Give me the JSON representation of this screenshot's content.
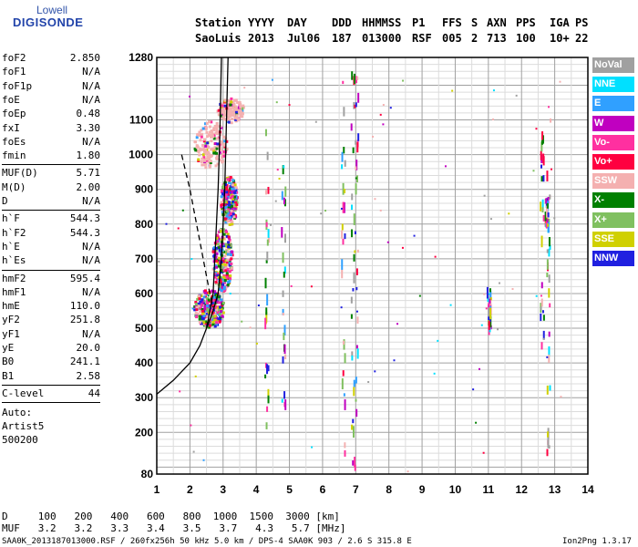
{
  "logo": {
    "top": "Lowell",
    "main": "DIGISONDE"
  },
  "header": {
    "row1": [
      "Station",
      "YYYY",
      "DAY",
      "DDD",
      "HHMMSS",
      "P1",
      "FFS",
      "S",
      "AXN",
      "PPS",
      "IGA",
      "PS"
    ],
    "row2": [
      "SaoLuis",
      "2013",
      "Jul06",
      "187",
      "013000",
      "RSF",
      "005",
      "2",
      "713",
      "100",
      "10+",
      "22"
    ]
  },
  "params": [
    {
      "k": "foF2",
      "v": "2.850"
    },
    {
      "k": "foF1",
      "v": "N/A"
    },
    {
      "k": "foF1p",
      "v": "N/A"
    },
    {
      "k": "foE",
      "v": "N/A"
    },
    {
      "k": "foEp",
      "v": "0.48"
    },
    {
      "k": "fxI",
      "v": "3.30"
    },
    {
      "k": "foEs",
      "v": "N/A"
    },
    {
      "k": "fmin",
      "v": "1.80"
    },
    {
      "k": "MUF(D)",
      "v": "5.71"
    },
    {
      "k": "M(D)",
      "v": "2.00"
    },
    {
      "k": "D",
      "v": "N/A"
    },
    {
      "k": "h`F",
      "v": "544.3"
    },
    {
      "k": "h`F2",
      "v": "544.3"
    },
    {
      "k": "h`E",
      "v": "N/A"
    },
    {
      "k": "h`Es",
      "v": "N/A"
    },
    {
      "k": "hmF2",
      "v": "595.4"
    },
    {
      "k": "hmF1",
      "v": "N/A"
    },
    {
      "k": "hmE",
      "v": "110.0"
    },
    {
      "k": "yF2",
      "v": "251.8"
    },
    {
      "k": "yF1",
      "v": "N/A"
    },
    {
      "k": "yE",
      "v": "20.0"
    },
    {
      "k": "B0",
      "v": "241.1"
    },
    {
      "k": "B1",
      "v": "2.58"
    },
    {
      "k": "C-level",
      "v": "44"
    }
  ],
  "auto_note": [
    "Auto:",
    "Artist5",
    "500200"
  ],
  "legend": [
    {
      "label": "NoVal",
      "color": "#a0a0a0"
    },
    {
      "label": "NNE",
      "color": "#00e0ff"
    },
    {
      "label": "E",
      "color": "#30a0ff"
    },
    {
      "label": "W",
      "color": "#c000c0"
    },
    {
      "label": "Vo-",
      "color": "#ff30a0"
    },
    {
      "label": "Vo+",
      "color": "#ff0040"
    },
    {
      "label": "SSW",
      "color": "#f4b0b0"
    },
    {
      "label": "X-",
      "color": "#008000"
    },
    {
      "label": "X+",
      "color": "#80c060"
    },
    {
      "label": "SSE",
      "color": "#d0d000"
    },
    {
      "label": "NNW",
      "color": "#2020e0"
    }
  ],
  "muf_table": {
    "d_label": "D",
    "muf_label": "MUF",
    "d_values": [
      "100",
      "200",
      "400",
      "600",
      "800",
      "1000",
      "1500",
      "3000"
    ],
    "d_unit": "[km]",
    "muf_values": [
      "3.2",
      "3.2",
      "3.3",
      "3.4",
      "3.5",
      "3.7",
      "4.3",
      "5.7"
    ],
    "muf_unit": "[MHz]"
  },
  "footer": {
    "left": "SAA0K_2013187013000.RSF / 260fx256h 50 kHz 5.0 km / DPS-4 SAA0K 903 / 2.6 S 315.8 E",
    "right": "Ion2Png 1.3.17"
  },
  "chart_data": {
    "type": "scatter",
    "xlim": [
      1,
      14
    ],
    "ylim": [
      80,
      1280
    ],
    "x_ticks": [
      1,
      2,
      3,
      4,
      5,
      6,
      7,
      8,
      9,
      10,
      11,
      12,
      13,
      14
    ],
    "y_ticks": [
      80,
      200,
      300,
      400,
      500,
      600,
      700,
      800,
      900,
      1000,
      1100,
      1280
    ],
    "grid": true,
    "legend_position": "right",
    "traces": [
      {
        "name": "o-trace profile",
        "style": "solid",
        "x": [
          1.0,
          1.5,
          2.0,
          2.3,
          2.5,
          2.6,
          2.7,
          2.75,
          2.8,
          2.85,
          2.9,
          2.95
        ],
        "y": [
          310,
          350,
          400,
          450,
          500,
          550,
          600,
          700,
          800,
          900,
          1050,
          1280
        ]
      },
      {
        "name": "x-trace",
        "style": "solid",
        "x": [
          2.5,
          2.7,
          2.85,
          2.95,
          3.05,
          3.15
        ],
        "y": [
          500,
          550,
          600,
          700,
          900,
          1280
        ]
      },
      {
        "name": "dashed",
        "style": "dashed",
        "x": [
          1.75,
          2.0,
          2.2,
          2.4,
          2.6,
          2.7
        ],
        "y": [
          1000,
          900,
          800,
          700,
          600,
          560
        ]
      }
    ],
    "blobs": [
      {
        "cx": 2.55,
        "cy": 560,
        "rx": 0.45,
        "ry": 55
      },
      {
        "cx": 2.95,
        "cy": 700,
        "rx": 0.3,
        "ry": 90
      },
      {
        "cx": 3.15,
        "cy": 870,
        "rx": 0.25,
        "ry": 70
      },
      {
        "cx": 2.6,
        "cy": 1030,
        "rx": 0.5,
        "ry": 70
      },
      {
        "cx": 3.2,
        "cy": 1130,
        "rx": 0.4,
        "ry": 35
      }
    ],
    "vertical_streaks": [
      {
        "x": 4.3,
        "y": [
          120,
          1100
        ]
      },
      {
        "x": 4.8,
        "y": [
          200,
          1200
        ]
      },
      {
        "x": 6.6,
        "y": [
          100,
          1240
        ]
      },
      {
        "x": 6.9,
        "y": [
          100,
          1260
        ]
      },
      {
        "x": 7.0,
        "y": [
          100,
          1270
        ]
      },
      {
        "x": 11.0,
        "y": [
          500,
          620
        ]
      },
      {
        "x": 12.6,
        "y": [
          400,
          1080
        ]
      },
      {
        "x": 12.8,
        "y": [
          150,
          1230
        ]
      },
      {
        "x": 12.75,
        "y": [
          800,
          880
        ]
      }
    ]
  }
}
